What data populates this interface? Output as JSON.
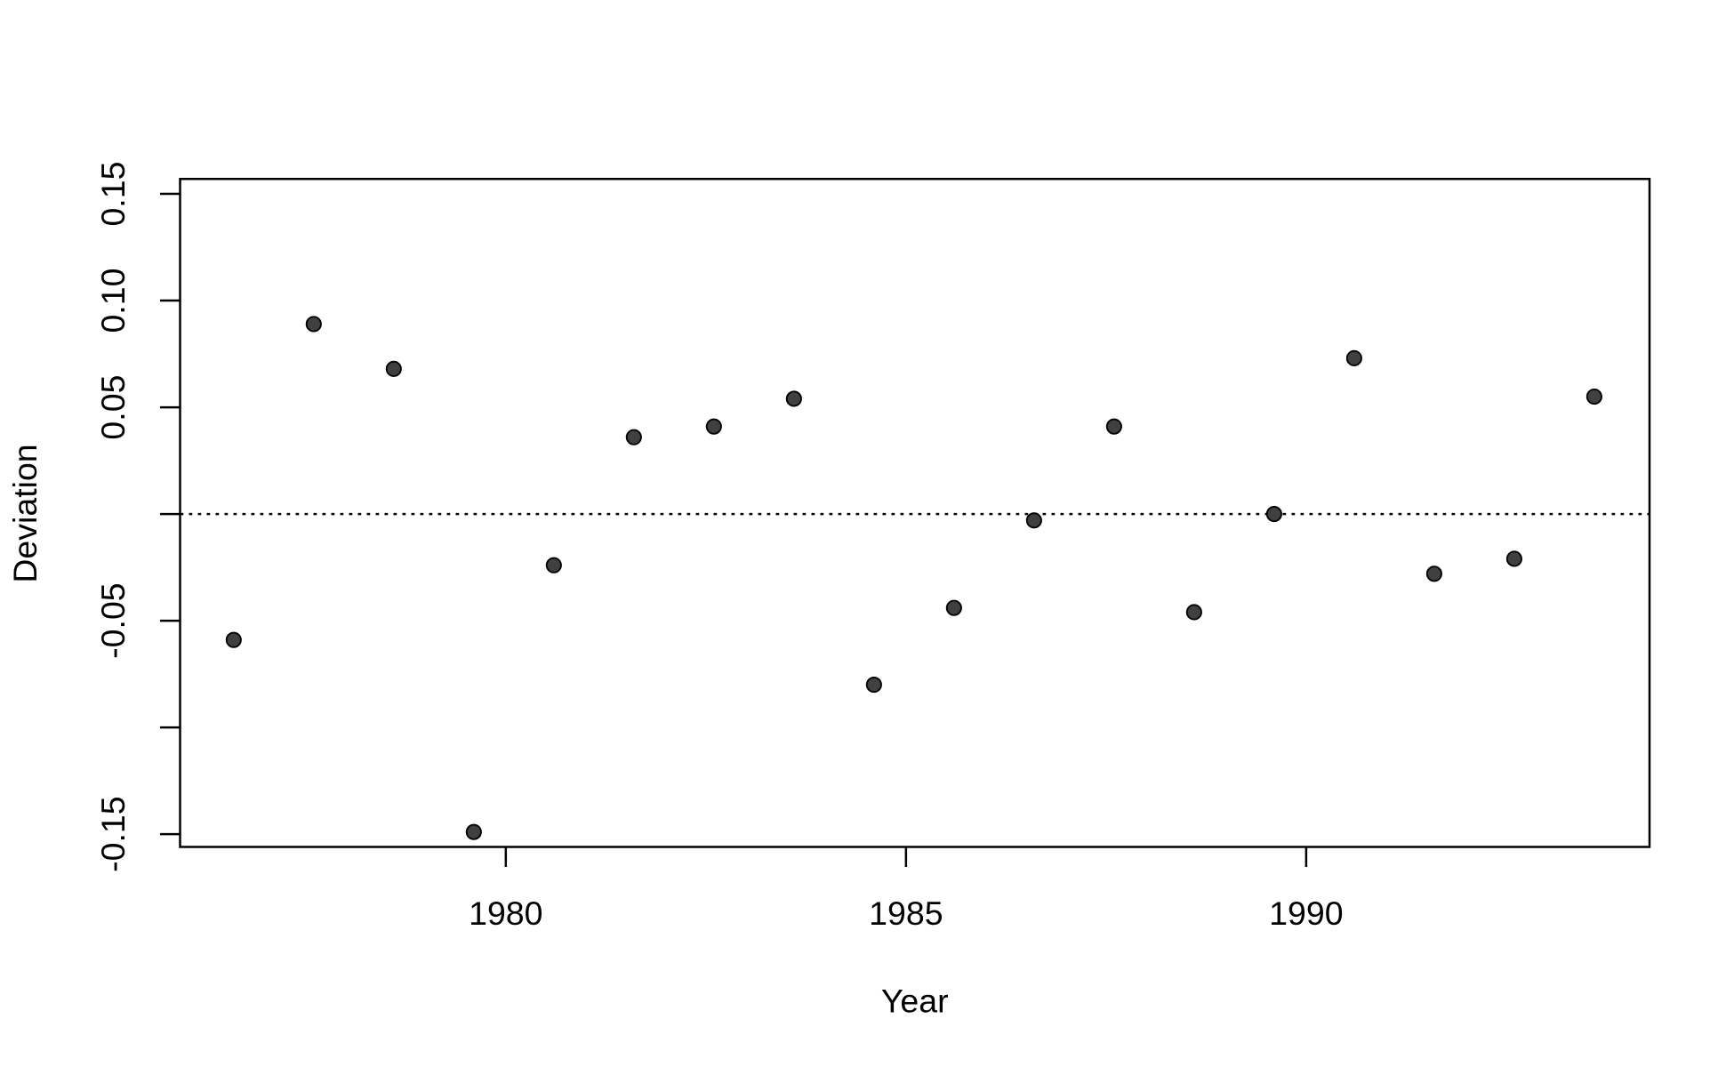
{
  "chart_data": {
    "type": "scatter",
    "x_label": "Year",
    "y_label": "Deviation",
    "x": [
      1976.6,
      1977.6,
      1978.6,
      1979.6,
      1980.6,
      1981.6,
      1982.6,
      1983.6,
      1984.6,
      1985.6,
      1986.6,
      1987.6,
      1988.6,
      1989.6,
      1990.6,
      1991.6,
      1992.6,
      1993.6
    ],
    "values": [
      -0.059,
      0.089,
      0.068,
      -0.149,
      -0.024,
      0.036,
      0.041,
      0.054,
      -0.08,
      -0.044,
      -0.003,
      0.041,
      -0.046,
      0.0,
      0.073,
      -0.028,
      -0.021,
      0.055
    ],
    "color": "#404040",
    "xlim": [
      1975.93,
      1994.29
    ],
    "xticks": [
      1980,
      1985,
      1990
    ],
    "ylim": [
      -0.156,
      0.157
    ],
    "yticks": [
      {
        "value": -0.15,
        "label": "-0.15"
      },
      {
        "value": -0.1,
        "label": null
      },
      {
        "value": -0.05,
        "label": "-0.05"
      },
      {
        "value": 0,
        "label": null
      },
      {
        "value": 0.05,
        "label": "0.05"
      },
      {
        "value": 0.1,
        "label": "0.10"
      },
      {
        "value": 0.15,
        "label": "0.15"
      }
    ],
    "hline": 0
  }
}
